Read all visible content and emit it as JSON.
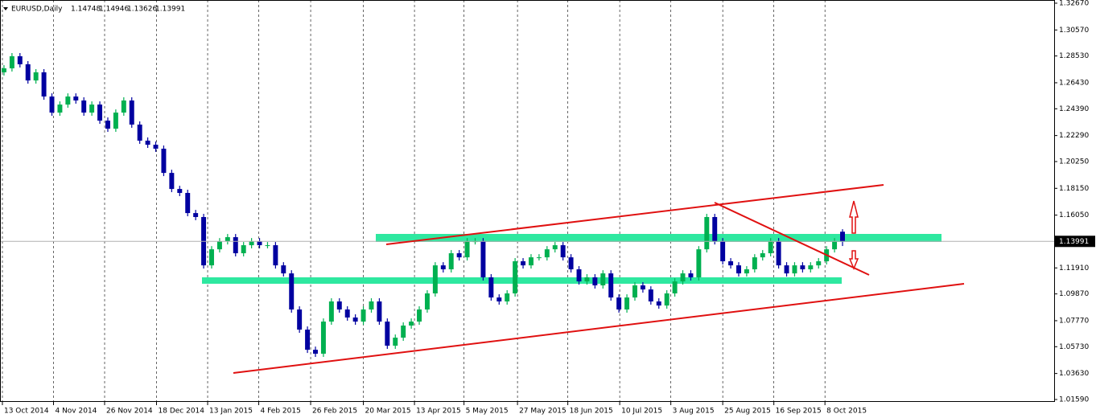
{
  "chart_data": {
    "type": "candlestick",
    "symbol": "EURUSD,Daily",
    "open": [
      1.2725,
      1.2756,
      1.2851,
      1.2788,
      1.2661,
      1.2725,
      1.2535,
      1.2409,
      1.2472,
      1.2535,
      1.2504,
      1.2409,
      1.2472,
      1.2346,
      1.2283,
      1.2409,
      1.2504,
      1.2315,
      1.2189,
      1.2157,
      1.2126,
      1.1936,
      1.181,
      1.1779,
      1.1621,
      1.159,
      1.1211,
      1.1337,
      1.14,
      1.1432,
      1.1306,
      1.1369,
      1.14,
      1.1369,
      1.1369,
      1.1211,
      1.1148,
      1.0865,
      1.0707,
      1.0549,
      1.0518,
      1.077,
      1.0928,
      1.0865,
      1.0802,
      1.077,
      1.0865,
      1.0928,
      1.077,
      1.0581,
      1.0644,
      1.0739,
      1.077,
      1.0865,
      1.0991,
      1.1211,
      1.118,
      1.1306,
      1.1274,
      1.14,
      1.14,
      1.1117,
      1.0959,
      1.0928,
      1.0991,
      1.1243,
      1.1211,
      1.1274,
      1.1274,
      1.1337,
      1.1369,
      1.1274,
      1.118,
      1.1085,
      1.1117,
      1.1054,
      1.1148,
      1.0959,
      1.0865,
      1.0959,
      1.1054,
      1.1022,
      1.0928,
      1.0896,
      1.0991,
      1.1085,
      1.1148,
      1.1117,
      1.1337,
      1.159,
      1.14,
      1.1243,
      1.1211,
      1.1148,
      1.118,
      1.1274,
      1.1306,
      1.14,
      1.1211,
      1.1148,
      1.1211,
      1.118,
      1.1211,
      1.1243,
      1.1337,
      1.14748
    ],
    "high": [
      1.2781,
      1.2876,
      1.2876,
      1.2813,
      1.275,
      1.275,
      1.256,
      1.2497,
      1.256,
      1.256,
      1.2529,
      1.2497,
      1.2497,
      1.2371,
      1.2434,
      1.2529,
      1.2529,
      1.234,
      1.2214,
      1.2182,
      1.2151,
      1.1961,
      1.1835,
      1.1804,
      1.1646,
      1.1615,
      1.1362,
      1.1425,
      1.1457,
      1.1457,
      1.1394,
      1.1425,
      1.1425,
      1.1394,
      1.1394,
      1.1236,
      1.1173,
      1.089,
      1.0732,
      1.0574,
      1.0795,
      1.0953,
      1.0953,
      1.089,
      1.0827,
      1.089,
      1.0953,
      1.0953,
      1.0795,
      1.0669,
      1.0764,
      1.0795,
      1.089,
      1.1016,
      1.1236,
      1.1236,
      1.1331,
      1.1331,
      1.1425,
      1.1425,
      1.1425,
      1.1142,
      1.0984,
      1.1016,
      1.1268,
      1.1268,
      1.1299,
      1.1299,
      1.1362,
      1.1394,
      1.1394,
      1.1299,
      1.1205,
      1.1142,
      1.1142,
      1.1173,
      1.1173,
      1.0984,
      1.0984,
      1.1079,
      1.1079,
      1.1047,
      1.0953,
      1.1016,
      1.111,
      1.1173,
      1.1173,
      1.1362,
      1.1615,
      1.1615,
      1.1425,
      1.1268,
      1.1236,
      1.1205,
      1.1299,
      1.1331,
      1.1425,
      1.1425,
      1.1236,
      1.1236,
      1.1236,
      1.1236,
      1.1268,
      1.1362,
      1.1425,
      1.14946
    ],
    "low": [
      1.27,
      1.2731,
      1.2763,
      1.2636,
      1.2636,
      1.251,
      1.2384,
      1.2384,
      1.2447,
      1.2479,
      1.2384,
      1.2384,
      1.2321,
      1.2258,
      1.2258,
      1.2384,
      1.229,
      1.2164,
      1.2132,
      1.2101,
      1.1911,
      1.1785,
      1.1754,
      1.1596,
      1.1565,
      1.1186,
      1.1186,
      1.1312,
      1.1375,
      1.1281,
      1.1281,
      1.1344,
      1.1344,
      1.1344,
      1.1186,
      1.1123,
      1.084,
      1.0682,
      1.0524,
      1.0493,
      1.0493,
      1.0745,
      1.084,
      1.0777,
      1.0745,
      1.0745,
      1.084,
      1.0745,
      1.0556,
      1.0556,
      1.0619,
      1.0714,
      1.0745,
      1.084,
      1.0966,
      1.1155,
      1.1155,
      1.1249,
      1.1249,
      1.1375,
      1.1092,
      1.0934,
      1.0903,
      1.0903,
      1.0966,
      1.1186,
      1.1186,
      1.1249,
      1.1249,
      1.1312,
      1.1249,
      1.1155,
      1.106,
      1.106,
      1.1029,
      1.1029,
      1.0934,
      1.084,
      1.084,
      1.0934,
      1.0997,
      1.0903,
      1.0871,
      1.0871,
      1.0966,
      1.106,
      1.1092,
      1.1092,
      1.1312,
      1.1375,
      1.1218,
      1.1186,
      1.1123,
      1.1123,
      1.1155,
      1.1249,
      1.1281,
      1.1186,
      1.1123,
      1.1123,
      1.1155,
      1.1155,
      1.1186,
      1.1218,
      1.1312,
      1.13626
    ],
    "close": [
      1.2756,
      1.2851,
      1.2788,
      1.2661,
      1.2725,
      1.2535,
      1.2409,
      1.2472,
      1.2535,
      1.2504,
      1.2409,
      1.2472,
      1.2346,
      1.2283,
      1.2409,
      1.2504,
      1.2315,
      1.2189,
      1.2157,
      1.2126,
      1.1936,
      1.181,
      1.1779,
      1.1621,
      1.159,
      1.1211,
      1.1337,
      1.14,
      1.1432,
      1.1306,
      1.1369,
      1.14,
      1.1369,
      1.1369,
      1.1211,
      1.1148,
      1.0865,
      1.0707,
      1.0549,
      1.0518,
      1.077,
      1.0928,
      1.0865,
      1.0802,
      1.077,
      1.0865,
      1.0928,
      1.077,
      1.0581,
      1.0644,
      1.0739,
      1.077,
      1.0865,
      1.0991,
      1.1211,
      1.118,
      1.1306,
      1.1274,
      1.14,
      1.14,
      1.1117,
      1.0959,
      1.0928,
      1.0991,
      1.1243,
      1.1211,
      1.1274,
      1.1274,
      1.1337,
      1.1369,
      1.1274,
      1.118,
      1.1085,
      1.1117,
      1.1054,
      1.1148,
      1.0959,
      1.0865,
      1.0959,
      1.1054,
      1.1022,
      1.0928,
      1.0896,
      1.0991,
      1.1085,
      1.1148,
      1.1117,
      1.1337,
      1.159,
      1.14,
      1.1243,
      1.1211,
      1.1148,
      1.118,
      1.1274,
      1.1306,
      1.14,
      1.1211,
      1.1148,
      1.1211,
      1.118,
      1.1211,
      1.1243,
      1.1337,
      1.14,
      1.13991
    ],
    "up_color": "#00b050",
    "down_color": "#0000a0",
    "xlim": [
      -0.5,
      131.5
    ],
    "ylim": [
      1.014,
      1.3292
    ],
    "xticks": [
      {
        "value": -0.2,
        "label": "13 Oct 2014"
      },
      {
        "value": 6.2,
        "label": "4 Nov 2014"
      },
      {
        "value": 12.6,
        "label": "26 Nov 2014"
      },
      {
        "value": 19.1,
        "label": "18 Dec 2014"
      },
      {
        "value": 25.5,
        "label": "13 Jan 2015"
      },
      {
        "value": 31.9,
        "label": "4 Feb 2015"
      },
      {
        "value": 38.4,
        "label": "26 Feb 2015"
      },
      {
        "value": 45.0,
        "label": "20 Mar 2015"
      },
      {
        "value": 51.4,
        "label": "13 Apr 2015"
      },
      {
        "value": 57.6,
        "label": "5 May 2015"
      },
      {
        "value": 64.3,
        "label": "27 May 2015"
      },
      {
        "value": 70.6,
        "label": "18 Jun 2015"
      },
      {
        "value": 77.1,
        "label": "10 Jul 2015"
      },
      {
        "value": 83.5,
        "label": "3 Aug 2015"
      },
      {
        "value": 90.0,
        "label": "25 Aug 2015"
      },
      {
        "value": 96.4,
        "label": "16 Sep 2015"
      },
      {
        "value": 102.8,
        "label": "8 Oct 2015"
      }
    ],
    "yticks": [
      {
        "value": 1.3267,
        "label": "1.32670"
      },
      {
        "value": 1.3057,
        "label": "1.30570"
      },
      {
        "value": 1.2853,
        "label": "1.28530"
      },
      {
        "value": 1.2643,
        "label": "1.26430"
      },
      {
        "value": 1.2439,
        "label": "1.24390"
      },
      {
        "value": 1.2229,
        "label": "1.22290"
      },
      {
        "value": 1.2025,
        "label": "1.20250"
      },
      {
        "value": 1.1815,
        "label": "1.18150"
      },
      {
        "value": 1.1605,
        "label": "1.16050"
      },
      {
        "value": 1.1191,
        "label": "1.11910"
      },
      {
        "value": 1.0987,
        "label": "1.09870"
      },
      {
        "value": 1.0777,
        "label": "1.07770"
      },
      {
        "value": 1.0573,
        "label": "1.05730"
      },
      {
        "value": 1.0363,
        "label": "1.03630"
      },
      {
        "value": 1.0159,
        "label": "1.01590"
      }
    ],
    "grid": true
  }
}
